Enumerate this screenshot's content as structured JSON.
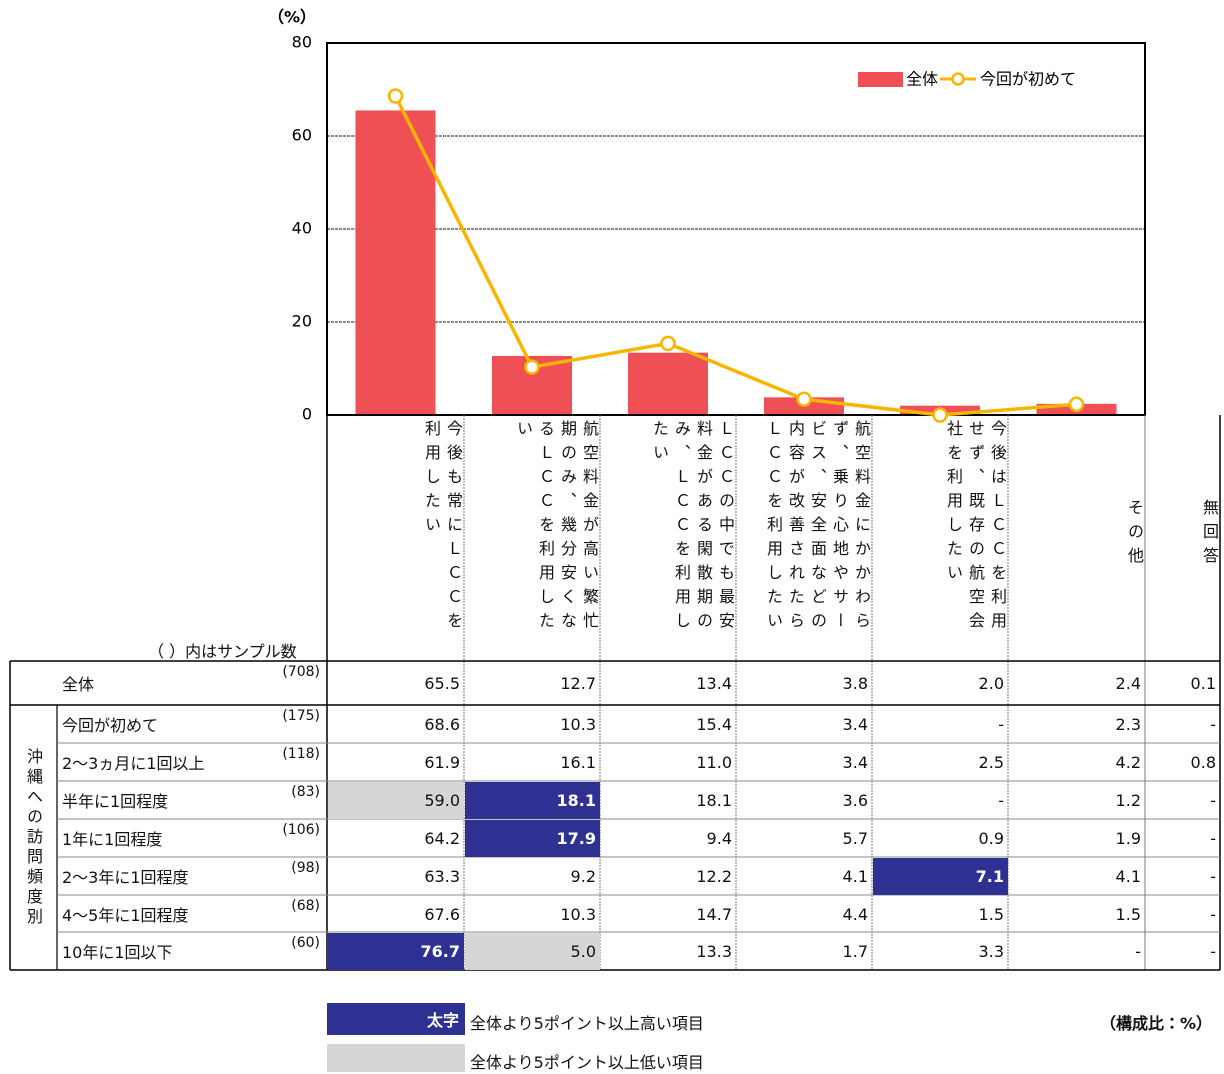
{
  "chart_data": {
    "type": "bar",
    "y_unit": "（%）",
    "categories": [
      "今後も常にＬＣＣを利用したい",
      "航空料金が高い繁忙期のみ、幾分安くなるＬＣＣを利用したい",
      "ＬＣＣの中でも最安料金がある閑散期のみ、ＬＣＣを利用したい",
      "航空料金にかかわらず、乗り心地やサービス、安全面などの内容が改善されたらＬＣＣを利用したい",
      "今後はＬＣＣを利用せず、既存の航空会社を利用したい",
      "その他"
    ],
    "series": [
      {
        "name": "全体",
        "color": "#ee5055",
        "values": [
          65.5,
          12.7,
          13.4,
          3.8,
          2.0,
          2.4
        ]
      },
      {
        "name": "今回が初めて",
        "color": "#f7b500",
        "type": "line",
        "values": [
          68.6,
          10.3,
          15.4,
          3.4,
          0,
          2.3
        ]
      }
    ],
    "ylim": [
      0,
      80
    ],
    "yticks": [
      0,
      20,
      40,
      60,
      80
    ],
    "grid": true,
    "legend": "top-right"
  },
  "table": {
    "extra_column": "無回答",
    "note": "（ ）内はサンプル数",
    "group_label": "沖縄への訪問頻度別",
    "rows": [
      {
        "label": "全体",
        "n": "(708)",
        "cells": [
          "65.5",
          "12.7",
          "13.4",
          "3.8",
          "2.0",
          "2.4",
          "0.1"
        ],
        "marks": [
          null,
          null,
          null,
          null,
          null,
          null,
          null
        ]
      },
      {
        "label": "今回が初めて",
        "n": "(175)",
        "cells": [
          "68.6",
          "10.3",
          "15.4",
          "3.4",
          "-",
          "2.3",
          "-"
        ],
        "marks": [
          null,
          null,
          null,
          null,
          null,
          null,
          null
        ]
      },
      {
        "label": "2～3ヵ月に1回以上",
        "n": "(118)",
        "cells": [
          "61.9",
          "16.1",
          "11.0",
          "3.4",
          "2.5",
          "4.2",
          "0.8"
        ],
        "marks": [
          null,
          null,
          null,
          null,
          null,
          null,
          null
        ]
      },
      {
        "label": "半年に1回程度",
        "n": "(83)",
        "cells": [
          "59.0",
          "18.1",
          "18.1",
          "3.6",
          "-",
          "1.2",
          "-"
        ],
        "marks": [
          "low",
          "high",
          null,
          null,
          null,
          null,
          null
        ]
      },
      {
        "label": "1年に1回程度",
        "n": "(106)",
        "cells": [
          "64.2",
          "17.9",
          "9.4",
          "5.7",
          "0.9",
          "1.9",
          "-"
        ],
        "marks": [
          null,
          "high",
          null,
          null,
          null,
          null,
          null
        ]
      },
      {
        "label": "2～3年に1回程度",
        "n": "(98)",
        "cells": [
          "63.3",
          "9.2",
          "12.2",
          "4.1",
          "7.1",
          "4.1",
          "-"
        ],
        "marks": [
          null,
          null,
          null,
          null,
          "high",
          null,
          null
        ]
      },
      {
        "label": "4～5年に1回程度",
        "n": "(68)",
        "cells": [
          "67.6",
          "10.3",
          "14.7",
          "4.4",
          "1.5",
          "1.5",
          "-"
        ],
        "marks": [
          null,
          null,
          null,
          null,
          null,
          null,
          null
        ]
      },
      {
        "label": "10年に1回以下",
        "n": "(60)",
        "cells": [
          "76.7",
          "5.0",
          "13.3",
          "1.7",
          "3.3",
          "-",
          "-"
        ],
        "marks": [
          "high",
          "low",
          null,
          null,
          null,
          null,
          null
        ]
      }
    ],
    "legend": {
      "high_key": "太字",
      "high_text": "全体より5ポイント以上高い項目",
      "low_text": "全体より5ポイント以上低い項目",
      "unit_note": "（構成比：%）"
    }
  }
}
